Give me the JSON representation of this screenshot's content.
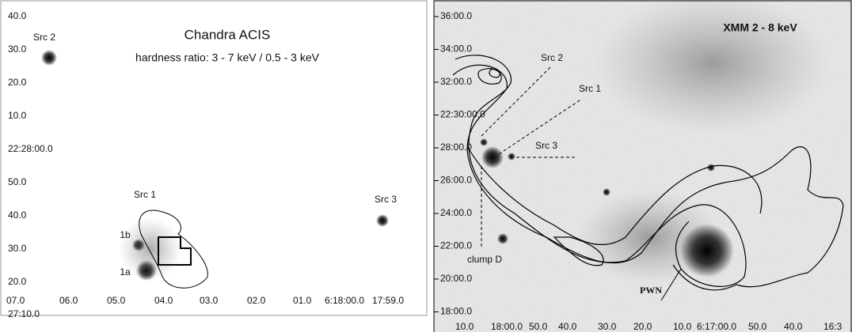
{
  "left_panel": {
    "title": "Chandra ACIS",
    "subtitle": "hardness ratio: 3 - 7 keV / 0.5 - 3 keV",
    "y_labels": [
      "40.0",
      "30.0",
      "20.0",
      "10.0",
      "22:28:00.0",
      "50.0",
      "40.0",
      "30.0",
      "20.0"
    ],
    "x_labels": [
      "07.0",
      "06.0",
      "05.0",
      "04.0",
      "03.0",
      "02.0",
      "01.0",
      "6:18:00.0",
      "17:59.0"
    ],
    "x_label_extra": "27:10.0",
    "annotations": {
      "src2": "Src 2",
      "src1": "Src 1",
      "src1b": "1b",
      "src1a": "1a",
      "src3": "Src 3"
    }
  },
  "right_panel": {
    "title": "XMM   2 - 8 keV",
    "y_labels": [
      "36:00.0",
      "34:00.0",
      "32:00.0",
      "22:30:00.0",
      "28:00.0",
      "26:00.0",
      "24:00.0",
      "22:00.0",
      "20:00.0",
      "18:00.0"
    ],
    "x_labels": [
      "10.0",
      "18:00.0",
      "50.0",
      "40.0",
      "30.0",
      "20.0",
      "10.0",
      "6:17:00.0",
      "50.0",
      "40.0",
      "16:3"
    ],
    "annotations": {
      "src2": "Src 2",
      "src1": "Src 1",
      "src3": "Src 3",
      "clump": "clump D",
      "pwn": "PWN"
    }
  }
}
